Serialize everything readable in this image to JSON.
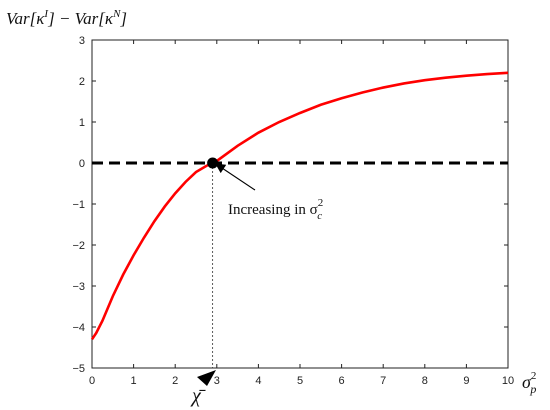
{
  "chart_data": {
    "type": "line",
    "title": "",
    "ylabel": {
      "pre": "Var[κ",
      "sup1": "I",
      "mid": "] − Var[κ",
      "sup2": "N",
      "post": "]"
    },
    "xlabel": {
      "base": "σ",
      "sup": "2",
      "sub": "p"
    },
    "xlim": [
      0,
      10
    ],
    "ylim": [
      -5,
      3
    ],
    "xticks": [
      0,
      1,
      2,
      3,
      4,
      5,
      6,
      7,
      8,
      9,
      10
    ],
    "yticks": [
      -5,
      -4,
      -3,
      -2,
      -1,
      0,
      1,
      2,
      3
    ],
    "grid": false,
    "series": [
      {
        "color": "#ff0000",
        "x": [
          0,
          0.1,
          0.25,
          0.5,
          0.75,
          1,
          1.25,
          1.5,
          1.75,
          2,
          2.25,
          2.5,
          2.75,
          2.9,
          3,
          3.5,
          4,
          4.5,
          5,
          5.5,
          6,
          6.5,
          7,
          7.5,
          8,
          8.5,
          9,
          9.5,
          10
        ],
        "y": [
          -4.3,
          -4.15,
          -3.85,
          -3.25,
          -2.72,
          -2.25,
          -1.82,
          -1.42,
          -1.06,
          -0.74,
          -0.46,
          -0.22,
          -0.07,
          0,
          0.05,
          0.42,
          0.74,
          1.0,
          1.22,
          1.42,
          1.58,
          1.72,
          1.84,
          1.94,
          2.02,
          2.08,
          2.13,
          2.17,
          2.2
        ]
      }
    ],
    "reference_line": {
      "y": 0,
      "style": "dashed",
      "color": "#000000"
    },
    "crossing_point": {
      "x": 2.9,
      "y": 0
    },
    "guide_line": {
      "x": 2.9,
      "style": "dotted"
    },
    "annotation": {
      "text": "Increasing in σ",
      "sup": "2",
      "sub": "c"
    },
    "marker_label": "χ̄"
  },
  "colors": {
    "curve": "#ff0000",
    "axes": "#222222",
    "reference": "#000000"
  }
}
